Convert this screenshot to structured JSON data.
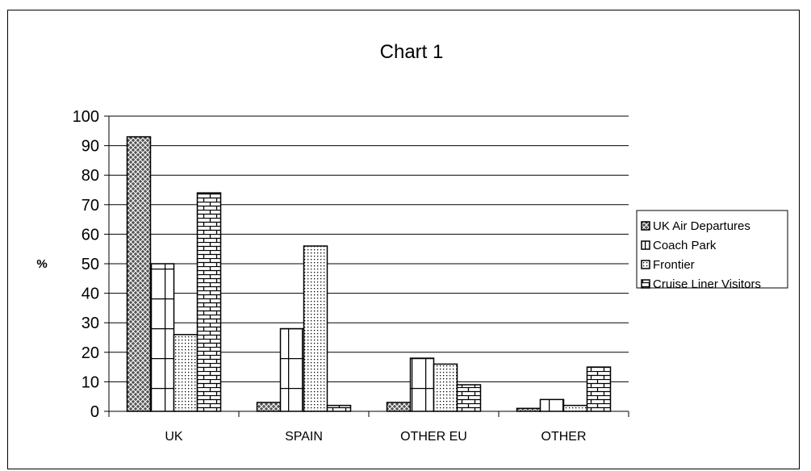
{
  "chart_data": {
    "type": "bar",
    "title": "Chart 1",
    "xlabel": "",
    "ylabel": "%",
    "ylim": [
      0,
      100
    ],
    "yticks": [
      "0",
      "10",
      "20",
      "30",
      "40",
      "50",
      "60",
      "70",
      "80",
      "90",
      "100"
    ],
    "categories": [
      "UK",
      "SPAIN",
      "OTHER EU",
      "OTHER"
    ],
    "series": [
      {
        "name": "UK Air Departures",
        "values": [
          93,
          3,
          3,
          1
        ],
        "pattern": "crosshatch"
      },
      {
        "name": "Coach Park",
        "values": [
          50,
          28,
          18,
          4
        ],
        "pattern": "grid"
      },
      {
        "name": "Frontier",
        "values": [
          26,
          56,
          16,
          2
        ],
        "pattern": "dots"
      },
      {
        "name": "Cruise Liner Visitors",
        "values": [
          74,
          2,
          9,
          15
        ],
        "pattern": "brick"
      }
    ],
    "grid": true,
    "legend": "right"
  }
}
